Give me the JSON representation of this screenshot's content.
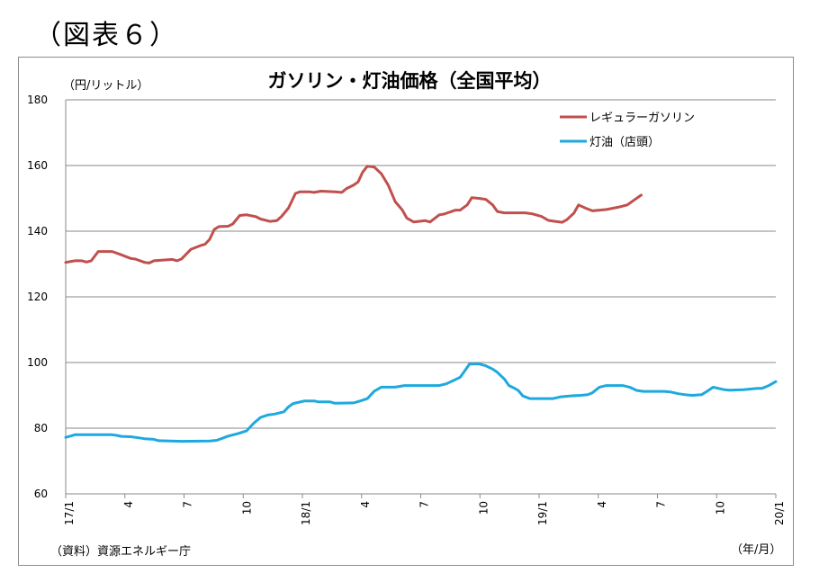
{
  "figure_label": "（図表６）",
  "source_note": "（資料）資源エネルギー庁",
  "chart_data": {
    "type": "line",
    "title": "ガソリン・灯油価格（全国平均）",
    "ylabel": "（円/リットル）",
    "xlabel": "（年/月）",
    "ylim": [
      60,
      180
    ],
    "yticks": [
      60,
      80,
      100,
      120,
      140,
      160,
      180
    ],
    "grid": true,
    "legend_position": "top-right",
    "x_ticks": [
      {
        "label": "17/1",
        "index": 0,
        "rotate": true
      },
      {
        "label": "4",
        "index": 13,
        "rotate": false
      },
      {
        "label": "7",
        "index": 26,
        "rotate": false
      },
      {
        "label": "10",
        "index": 39,
        "rotate": false
      },
      {
        "label": "18/1",
        "index": 52,
        "rotate": true
      },
      {
        "label": "4",
        "index": 65,
        "rotate": false
      },
      {
        "label": "7",
        "index": 78,
        "rotate": false
      },
      {
        "label": "10",
        "index": 91,
        "rotate": false
      },
      {
        "label": "19/1",
        "index": 104,
        "rotate": true
      },
      {
        "label": "4",
        "index": 117,
        "rotate": false
      },
      {
        "label": "7",
        "index": 130,
        "rotate": false
      },
      {
        "label": "10",
        "index": 143,
        "rotate": false
      },
      {
        "label": "20/1",
        "index": 156,
        "rotate": true
      }
    ],
    "series": [
      {
        "name": "レギュラーガソリン",
        "color": "#c0504d",
        "points": [
          [
            0,
            130.5
          ],
          [
            4,
            131
          ],
          [
            7,
            131
          ],
          [
            9,
            130.6
          ],
          [
            11,
            131
          ],
          [
            14,
            133.8
          ],
          [
            20,
            133.8
          ],
          [
            24,
            132.8
          ],
          [
            28,
            131.7
          ],
          [
            30,
            131.5
          ],
          [
            34,
            130.5
          ],
          [
            36,
            130.3
          ],
          [
            38,
            131
          ],
          [
            46,
            131.4
          ],
          [
            48,
            131
          ],
          [
            50,
            131.6
          ],
          [
            54,
            134.5
          ],
          [
            58,
            135.6
          ],
          [
            60,
            136
          ],
          [
            62,
            137.5
          ],
          [
            64,
            140.5
          ],
          [
            66,
            141.4
          ],
          [
            70,
            141.5
          ],
          [
            72,
            142.2
          ],
          [
            75,
            144.8
          ],
          [
            78,
            145
          ],
          [
            82,
            144.4
          ],
          [
            84,
            143.7
          ],
          [
            88,
            143
          ],
          [
            91,
            143.2
          ],
          [
            93,
            144.5
          ],
          [
            96,
            147
          ],
          [
            99,
            151.5
          ],
          [
            101,
            152
          ],
          [
            105,
            152
          ],
          [
            107,
            151.8
          ],
          [
            110,
            152.2
          ],
          [
            116,
            152
          ],
          [
            119,
            151.8
          ],
          [
            121,
            153
          ],
          [
            124,
            154
          ],
          [
            126,
            155
          ],
          [
            128,
            158
          ],
          [
            130,
            159.8
          ],
          [
            133,
            159.5
          ],
          [
            136,
            157.5
          ],
          [
            139,
            154
          ],
          [
            142,
            149
          ],
          [
            145,
            146.5
          ],
          [
            147,
            144
          ],
          [
            150,
            142.8
          ],
          [
            155,
            143.2
          ],
          [
            157,
            142.8
          ],
          [
            161,
            145
          ],
          [
            163,
            145.2
          ],
          [
            168,
            146.4
          ],
          [
            170,
            146.4
          ],
          [
            173,
            148
          ],
          [
            175,
            150.2
          ],
          [
            178,
            150
          ],
          [
            181,
            149.7
          ],
          [
            184,
            148
          ],
          [
            186,
            146
          ],
          [
            189,
            145.6
          ],
          [
            198,
            145.6
          ],
          [
            201,
            145.3
          ],
          [
            205,
            144.5
          ],
          [
            208,
            143.3
          ],
          [
            211,
            143
          ],
          [
            214,
            142.7
          ],
          [
            216,
            143.5
          ],
          [
            219,
            145.5
          ],
          [
            221,
            148
          ],
          [
            224,
            147
          ],
          [
            227,
            146.2
          ],
          [
            233,
            146.6
          ],
          [
            238,
            147.3
          ],
          [
            242,
            148
          ],
          [
            245,
            149.5
          ],
          [
            248,
            151
          ]
        ]
      },
      {
        "name": "灯油（店頭）",
        "color": "#1ea9de",
        "points": [
          [
            0,
            77.2
          ],
          [
            2,
            77.6
          ],
          [
            4,
            78
          ],
          [
            12,
            78
          ],
          [
            20,
            78
          ],
          [
            22,
            77.8
          ],
          [
            24,
            77.5
          ],
          [
            28,
            77.4
          ],
          [
            30,
            77.2
          ],
          [
            34,
            76.8
          ],
          [
            38,
            76.6
          ],
          [
            40,
            76.2
          ],
          [
            50,
            76
          ],
          [
            62,
            76.1
          ],
          [
            65,
            76.3
          ],
          [
            67,
            76.8
          ],
          [
            70,
            77.6
          ],
          [
            74,
            78.3
          ],
          [
            78,
            79.2
          ],
          [
            81,
            81.5
          ],
          [
            84,
            83.3
          ],
          [
            87,
            84
          ],
          [
            90,
            84.3
          ],
          [
            94,
            85
          ],
          [
            96,
            86.5
          ],
          [
            98,
            87.5
          ],
          [
            103,
            88.3
          ],
          [
            107,
            88.3
          ],
          [
            109,
            88
          ],
          [
            114,
            88
          ],
          [
            116,
            87.6
          ],
          [
            124,
            87.7
          ],
          [
            127,
            88.3
          ],
          [
            130,
            89
          ],
          [
            133,
            91.3
          ],
          [
            136,
            92.5
          ],
          [
            142,
            92.5
          ],
          [
            146,
            93
          ],
          [
            152,
            93
          ],
          [
            157,
            93
          ],
          [
            161,
            93
          ],
          [
            164,
            93.5
          ],
          [
            167,
            94.5
          ],
          [
            170,
            95.5
          ],
          [
            172,
            97.5
          ],
          [
            174,
            99.5
          ],
          [
            178,
            99.6
          ],
          [
            181,
            99
          ],
          [
            184,
            98
          ],
          [
            186,
            97
          ],
          [
            189,
            95
          ],
          [
            191,
            93
          ],
          [
            193,
            92.3
          ],
          [
            195,
            91.5
          ],
          [
            197,
            89.8
          ],
          [
            200,
            89
          ],
          [
            204,
            89
          ],
          [
            210,
            89
          ],
          [
            213,
            89.5
          ],
          [
            217,
            89.8
          ],
          [
            222,
            90
          ],
          [
            225,
            90.2
          ],
          [
            227,
            90.8
          ],
          [
            230,
            92.5
          ],
          [
            233,
            93
          ],
          [
            237,
            93
          ],
          [
            240,
            93
          ],
          [
            243,
            92.5
          ],
          [
            246,
            91.5
          ],
          [
            249,
            91.2
          ],
          [
            255,
            91.2
          ],
          [
            258,
            91.2
          ],
          [
            261,
            91
          ],
          [
            264,
            90.5
          ],
          [
            267,
            90.2
          ],
          [
            270,
            90
          ],
          [
            274,
            90.2
          ],
          [
            277,
            91.5
          ],
          [
            279,
            92.5
          ],
          [
            282,
            92
          ],
          [
            284,
            91.7
          ],
          [
            286,
            91.6
          ],
          [
            292,
            91.7
          ],
          [
            296,
            92
          ],
          [
            298,
            92.1
          ],
          [
            300,
            92.1
          ],
          [
            303,
            93
          ],
          [
            306,
            94.2
          ]
        ]
      }
    ]
  }
}
